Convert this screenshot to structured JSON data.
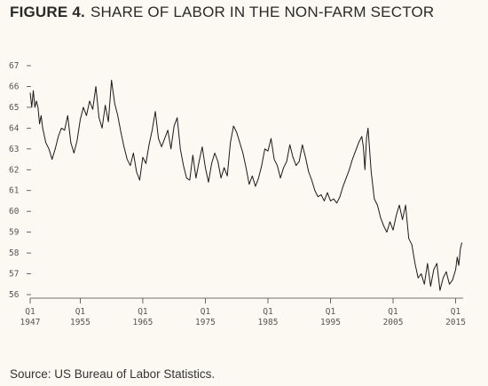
{
  "figure": {
    "label": "FIGURE 4.",
    "title": "SHARE OF LABOR IN THE NON-FARM SECTOR"
  },
  "source": "Source: US Bureau of Labor Statistics.",
  "colors": {
    "background": "#fbf9f1",
    "line": "#1a1a1a",
    "text": "#2a2a2a"
  },
  "chart_data": {
    "type": "line",
    "title": "SHARE OF LABOR IN THE NON-FARM SECTOR",
    "xlabel": "",
    "ylabel": "",
    "x_ticks": [
      {
        "value": 1947,
        "l1": "Q1",
        "l2": "1947"
      },
      {
        "value": 1955,
        "l1": "Q1",
        "l2": "1955"
      },
      {
        "value": 1965,
        "l1": "Q1",
        "l2": "1965"
      },
      {
        "value": 1975,
        "l1": "Q1",
        "l2": "1975"
      },
      {
        "value": 1985,
        "l1": "Q1",
        "l2": "1985"
      },
      {
        "value": 1995,
        "l1": "Q1",
        "l2": "1995"
      },
      {
        "value": 2005,
        "l1": "Q1",
        "l2": "2005"
      },
      {
        "value": 2015,
        "l1": "Q1",
        "l2": "2015"
      }
    ],
    "y_ticks": [
      56,
      57,
      58,
      59,
      60,
      61,
      62,
      63,
      64,
      65,
      66,
      67
    ],
    "xlim": [
      1947,
      2016.2
    ],
    "ylim": [
      56,
      67
    ],
    "grid": false,
    "series": [
      {
        "x": [
          1947.0,
          1947.25,
          1947.5,
          1947.75,
          1948.0,
          1948.25,
          1948.5,
          1948.75,
          1949.0,
          1949.5,
          1950.0,
          1950.5,
          1951.0,
          1951.5,
          1952.0,
          1952.5,
          1953.0,
          1953.5,
          1954.0,
          1954.5,
          1955.0,
          1955.5,
          1956.0,
          1956.5,
          1957.0,
          1957.5,
          1958.0,
          1958.5,
          1959.0,
          1959.5,
          1960.0,
          1960.5,
          1961.0,
          1961.5,
          1962.0,
          1962.5,
          1963.0,
          1963.5,
          1964.0,
          1964.5,
          1965.0,
          1965.5,
          1966.0,
          1966.5,
          1967.0,
          1967.5,
          1968.0,
          1968.5,
          1969.0,
          1969.5,
          1970.0,
          1970.5,
          1971.0,
          1971.5,
          1972.0,
          1972.5,
          1973.0,
          1973.5,
          1974.0,
          1974.5,
          1975.0,
          1975.5,
          1976.0,
          1976.5,
          1977.0,
          1977.5,
          1978.0,
          1978.5,
          1979.0,
          1979.5,
          1980.0,
          1980.5,
          1981.0,
          1981.5,
          1982.0,
          1982.5,
          1983.0,
          1983.5,
          1984.0,
          1984.5,
          1985.0,
          1985.5,
          1986.0,
          1986.5,
          1987.0,
          1987.5,
          1988.0,
          1988.5,
          1989.0,
          1989.5,
          1990.0,
          1990.5,
          1991.0,
          1991.5,
          1992.0,
          1992.5,
          1993.0,
          1993.5,
          1994.0,
          1994.5,
          1995.0,
          1995.5,
          1996.0,
          1996.5,
          1997.0,
          1997.5,
          1998.0,
          1998.5,
          1999.0,
          1999.5,
          2000.0,
          2000.25,
          2000.5,
          2000.75,
          2001.0,
          2001.5,
          2002.0,
          2002.5,
          2003.0,
          2003.5,
          2004.0,
          2004.5,
          2005.0,
          2005.5,
          2006.0,
          2006.5,
          2007.0,
          2007.5,
          2008.0,
          2008.5,
          2009.0,
          2009.5,
          2010.0,
          2010.5,
          2011.0,
          2011.5,
          2012.0,
          2012.5,
          2013.0,
          2013.5,
          2014.0,
          2014.5,
          2015.0,
          2015.25,
          2015.5,
          2015.75,
          2016.0
        ],
        "y": [
          65.7,
          65.0,
          65.8,
          65.0,
          65.3,
          65.0,
          64.2,
          64.6,
          64.0,
          63.3,
          63.0,
          62.5,
          63.0,
          63.6,
          64.0,
          63.9,
          64.6,
          63.3,
          62.8,
          63.4,
          64.4,
          65.0,
          64.6,
          65.3,
          64.9,
          66.0,
          64.5,
          64.0,
          65.1,
          64.3,
          66.3,
          65.2,
          64.6,
          63.8,
          63.1,
          62.5,
          62.2,
          62.8,
          61.9,
          61.5,
          62.6,
          62.3,
          63.2,
          63.9,
          64.8,
          63.5,
          63.1,
          63.5,
          63.9,
          63.0,
          64.1,
          64.5,
          63.0,
          62.2,
          61.6,
          61.5,
          62.7,
          61.6,
          62.4,
          63.1,
          62.1,
          61.4,
          62.3,
          62.8,
          62.4,
          61.6,
          62.1,
          61.7,
          63.3,
          64.1,
          63.8,
          63.3,
          62.8,
          62.1,
          61.3,
          61.7,
          61.2,
          61.6,
          62.2,
          63.0,
          62.9,
          63.5,
          62.5,
          62.2,
          61.6,
          62.1,
          62.4,
          63.2,
          62.6,
          62.2,
          62.4,
          63.2,
          62.6,
          61.9,
          61.5,
          61.0,
          60.7,
          60.8,
          60.5,
          60.9,
          60.5,
          60.6,
          60.4,
          60.7,
          61.2,
          61.6,
          62.0,
          62.5,
          62.9,
          63.3,
          63.6,
          63.1,
          62.0,
          63.5,
          64.0,
          61.9,
          60.6,
          60.3,
          59.7,
          59.3,
          59.0,
          59.5,
          59.1,
          59.8,
          60.3,
          59.6,
          60.3,
          58.7,
          58.4,
          57.5,
          56.8,
          57.0,
          56.5,
          57.5,
          56.4,
          57.2,
          57.5,
          56.2,
          56.8,
          57.1,
          56.5,
          56.7,
          57.2,
          57.8,
          57.4,
          58.2,
          58.5
        ]
      }
    ]
  }
}
